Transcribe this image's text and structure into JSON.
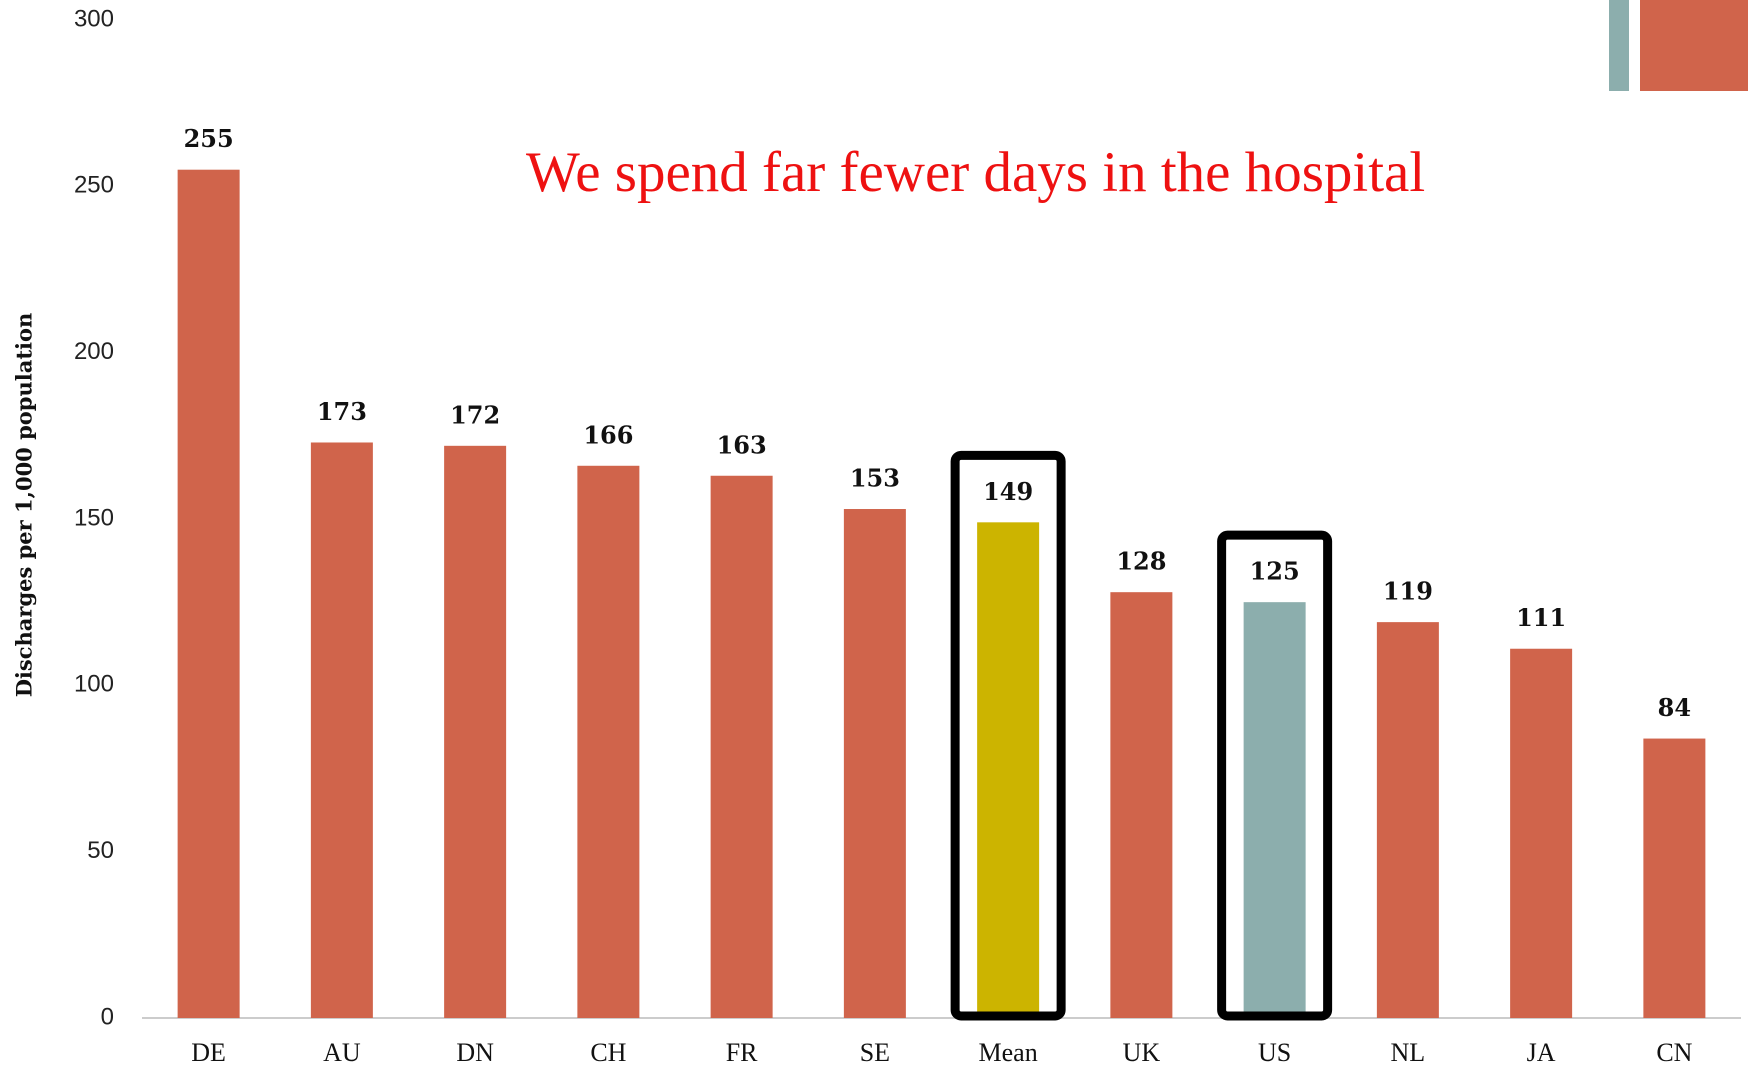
{
  "chart_data": {
    "type": "bar",
    "title": "We spend far fewer days in the hospital",
    "y_label": "Discharges per 1,000  population",
    "categories": [
      "DE",
      "AU",
      "DN",
      "CH",
      "FR",
      "SE",
      "Mean",
      "UK",
      "US",
      "NL",
      "JA",
      "CN"
    ],
    "values": [
      255,
      173,
      172,
      166,
      163,
      153,
      149,
      128,
      125,
      119,
      111,
      84
    ],
    "colors": [
      "#d0644b",
      "#d0644b",
      "#d0644b",
      "#d0644b",
      "#d0644b",
      "#d0644b",
      "#ccb400",
      "#d0644b",
      "#8caead",
      "#d0644b",
      "#d0644b",
      "#d0644b"
    ],
    "highlight": [
      6,
      8
    ],
    "ylim": [
      0,
      300
    ],
    "yticks": [
      0,
      50,
      100,
      150,
      200,
      250,
      300
    ],
    "grid": false
  }
}
